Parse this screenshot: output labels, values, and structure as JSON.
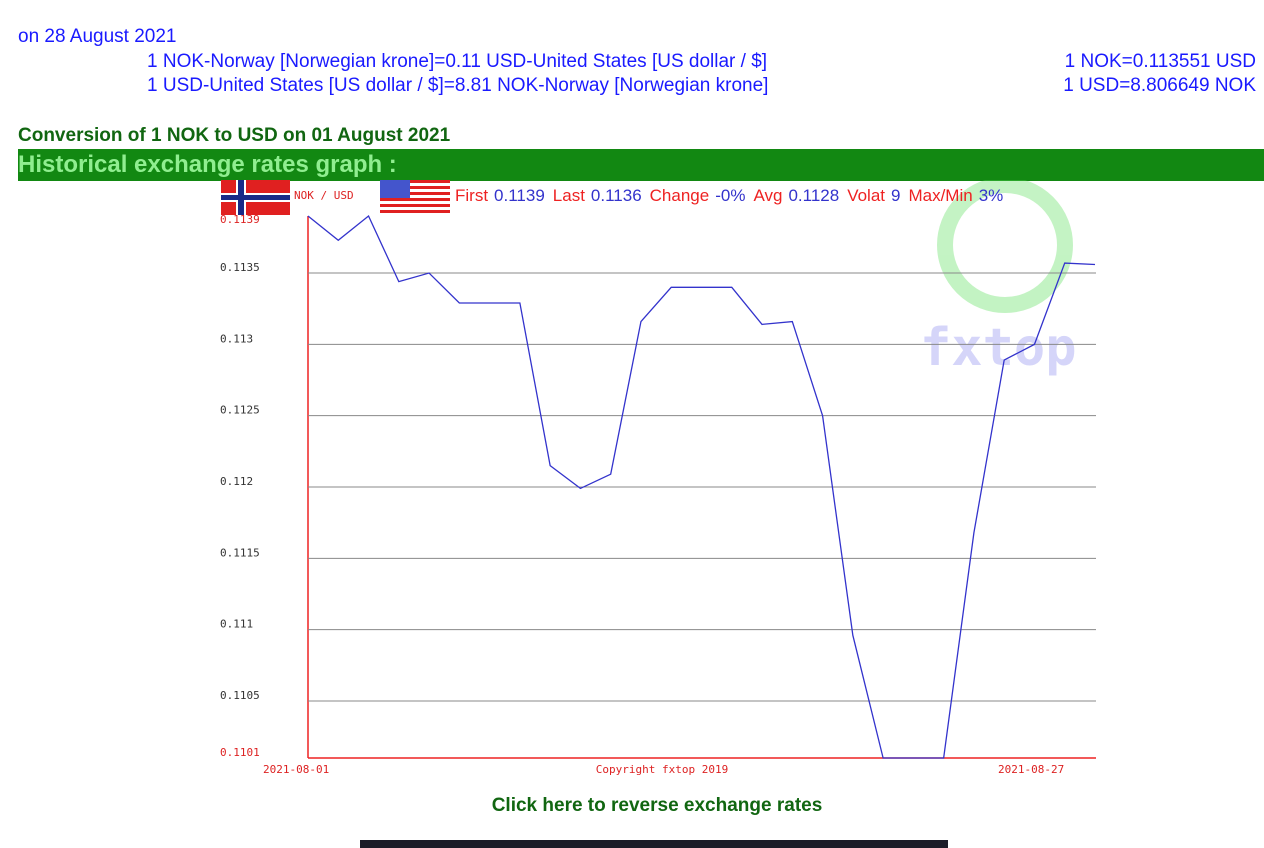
{
  "header": {
    "date_line": "on 28 August 2021",
    "rates": [
      {
        "text": "1 NOK-Norway [Norwegian krone]=0.11 USD-United States [US dollar / $]",
        "short": "1 NOK=0.113551 USD"
      },
      {
        "text": "1 USD-United States [US dollar / $]=8.81 NOK-Norway [Norwegian krone]",
        "short": "1 USD=8.806649 NOK"
      }
    ]
  },
  "conversion_title": "Conversion of 1 NOK to USD on 01 August 2021",
  "section_title": "Historical exchange rates graph :",
  "chart_data": {
    "type": "line",
    "pair": "NOK / USD",
    "stats": [
      {
        "label": "First",
        "value": "0.1139"
      },
      {
        "label": "Last",
        "value": "0.1136"
      },
      {
        "label": "Change",
        "value": "-0%"
      },
      {
        "label": "Avg",
        "value": "0.1128"
      },
      {
        "label": "Volat",
        "value": "9"
      },
      {
        "label": "Max/Min",
        "value": "3%"
      }
    ],
    "categories": [
      "2021-08-01",
      null,
      null,
      null,
      null,
      null,
      null,
      null,
      null,
      null,
      null,
      null,
      null,
      null,
      null,
      null,
      null,
      null,
      null,
      null,
      null,
      null,
      null,
      null,
      null,
      null,
      "2021-08-27"
    ],
    "values": [
      0.1139,
      0.11373,
      0.1139,
      0.11344,
      0.1135,
      0.11329,
      0.11329,
      0.11329,
      0.11215,
      0.11199,
      0.11209,
      0.11316,
      0.1134,
      0.1134,
      0.1134,
      0.11314,
      0.11316,
      0.1125,
      0.11096,
      0.1101,
      0.1101,
      0.1101,
      0.11168,
      0.11289,
      0.113,
      0.11357,
      0.11356
    ],
    "color": "#3333cc",
    "ylim": [
      0.1101,
      0.1139
    ],
    "yticks": [
      0.1101,
      0.1105,
      0.111,
      0.1115,
      0.112,
      0.1125,
      0.113,
      0.1135,
      0.1139
    ],
    "grid": true,
    "copyright": "Copyright fxtop 2019"
  },
  "reverse_link": "Click here to reverse exchange rates"
}
